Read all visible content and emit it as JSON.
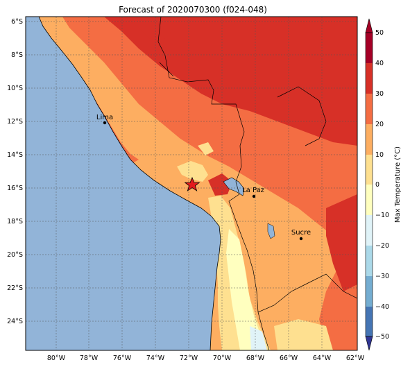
{
  "title": "Forecast of 2020070300 (f024-048)",
  "lat_labels": [
    "6°S",
    "8°S",
    "10°S",
    "12°S",
    "14°S",
    "16°S",
    "18°S",
    "20°S",
    "22°S",
    "24°S"
  ],
  "lon_labels": [
    "80°W",
    "78°W",
    "76°W",
    "74°W",
    "72°W",
    "70°W",
    "68°W",
    "66°W",
    "64°W",
    "62°W"
  ],
  "colorbar": {
    "label": "Max Temperature (°C)",
    "ticks": [
      "50",
      "40",
      "30",
      "20",
      "10",
      "0",
      "−10",
      "−20",
      "−30",
      "−40",
      "−50"
    ],
    "levels": [
      50,
      40,
      30,
      20,
      10,
      0,
      -10,
      -20,
      -30,
      -40,
      -50
    ],
    "colors": [
      "#a50026",
      "#d73027",
      "#f46d43",
      "#fdae61",
      "#fee090",
      "#ffffbf",
      "#e0f3f8",
      "#abd9e9",
      "#74add1",
      "#4575b4",
      "#313695"
    ]
  },
  "cities": [
    {
      "name": "Lima",
      "lat": -12.05,
      "lon": -77.04
    },
    {
      "name": "La Paz",
      "lat": -16.5,
      "lon": -68.15
    },
    {
      "name": "Sucre",
      "lat": -19.05,
      "lon": -65.26
    }
  ],
  "marker": {
    "symbol": "star",
    "lat": -15.8,
    "lon": -71.8,
    "color": "#e31a1c"
  },
  "colors": {
    "ocean": "#92b4d8",
    "grid": "#555555"
  }
}
